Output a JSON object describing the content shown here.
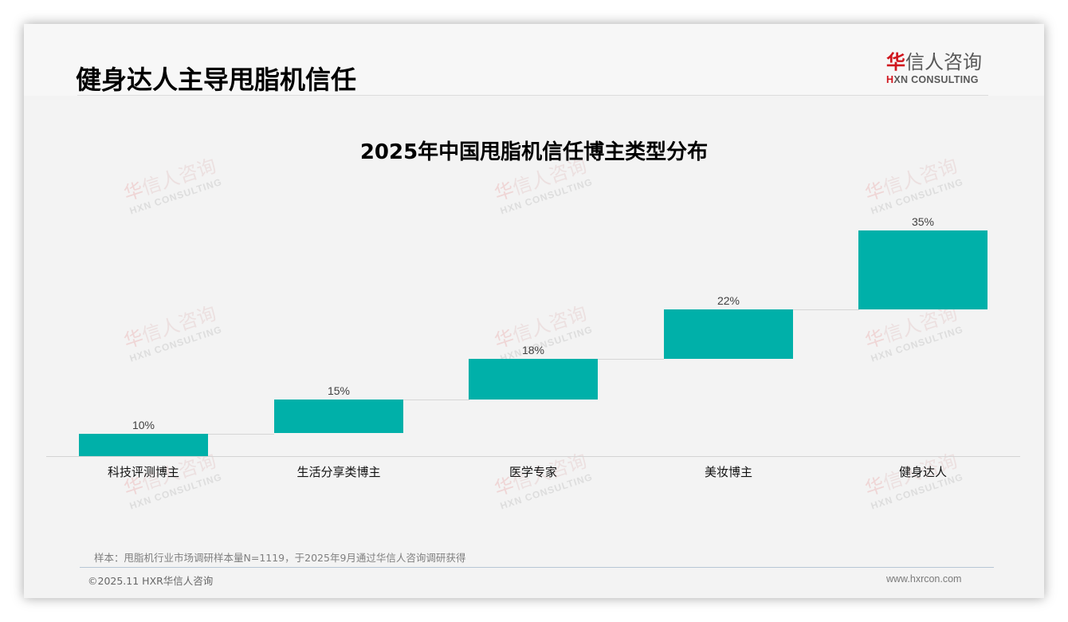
{
  "header": {
    "title": "健身达人主导甩脂机信任",
    "logo": {
      "cn_accent": "华",
      "cn_rest": "信人咨询",
      "en_accent": "H",
      "en_rest": "XN CONSULTING"
    }
  },
  "watermark": {
    "cn_accent": "华",
    "cn_rest": "信人咨询",
    "en": "HXN CONSULTING"
  },
  "chart_data": {
    "type": "bar",
    "subtype": "waterfall",
    "title": "2025年中国甩脂机信任博主类型分布",
    "categories": [
      "科技评测博主",
      "生活分享类博主",
      "医学专家",
      "美妆博主",
      "健身达人"
    ],
    "values": [
      10,
      15,
      18,
      22,
      35
    ],
    "value_labels": [
      "10%",
      "15%",
      "18%",
      "22%",
      "35%"
    ],
    "unit": "%",
    "xlabel": "",
    "ylabel": "",
    "ylim": [
      0,
      100
    ],
    "grid": false,
    "legend": null,
    "bar_color": "#00b0a9",
    "connectors": true
  },
  "footer": {
    "source": "样本：甩脂机行业市场调研样本量N=1119，于2025年9月通过华信人咨询调研获得",
    "copyright": "©2025.11 HXR华信人咨询",
    "website": "www.hxrcon.com"
  }
}
